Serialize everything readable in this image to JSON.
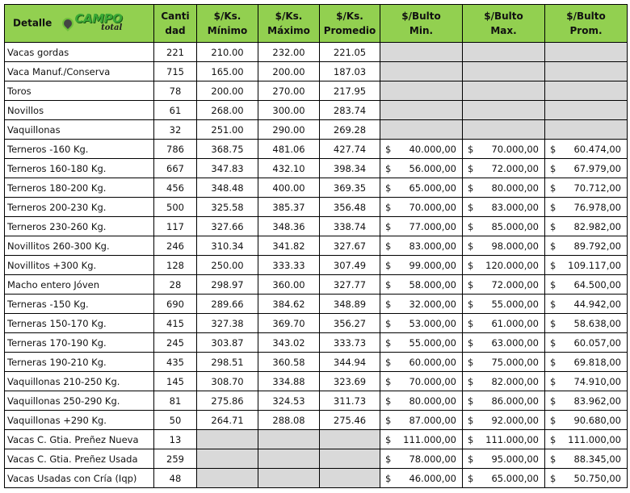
{
  "header": {
    "detalle": "Detalle",
    "logo_text": "CAMPO total",
    "cantidad": [
      "Canti",
      "dad"
    ],
    "kg_min": [
      "$/Ks.",
      "Mínimo"
    ],
    "kg_max": [
      "$/Ks.",
      "Máximo"
    ],
    "kg_prom": [
      "$/Ks.",
      "Promedio"
    ],
    "bulto_min": [
      "$/Bulto",
      "Min."
    ],
    "bulto_max": [
      "$/Bulto",
      "Max."
    ],
    "bulto_prom": [
      "$/Bulto",
      "Prom."
    ]
  },
  "currency_symbol": "$",
  "colors": {
    "header_bg": "#92d050",
    "empty_cell": "#d9d9d9"
  },
  "rows": [
    {
      "detalle": "Vacas gordas",
      "cantidad": "221",
      "kg_min": "210.00",
      "kg_max": "232.00",
      "kg_prom": "221.05",
      "bulto_min": null,
      "bulto_max": null,
      "bulto_prom": null
    },
    {
      "detalle": "Vaca Manuf./Conserva",
      "cantidad": "715",
      "kg_min": "165.00",
      "kg_max": "200.00",
      "kg_prom": "187.03",
      "bulto_min": null,
      "bulto_max": null,
      "bulto_prom": null
    },
    {
      "detalle": "Toros",
      "cantidad": "78",
      "kg_min": "200.00",
      "kg_max": "270.00",
      "kg_prom": "217.95",
      "bulto_min": null,
      "bulto_max": null,
      "bulto_prom": null
    },
    {
      "detalle": "Novillos",
      "cantidad": "61",
      "kg_min": "268.00",
      "kg_max": "300.00",
      "kg_prom": "283.74",
      "bulto_min": null,
      "bulto_max": null,
      "bulto_prom": null
    },
    {
      "detalle": "Vaquillonas",
      "cantidad": "32",
      "kg_min": "251.00",
      "kg_max": "290.00",
      "kg_prom": "269.28",
      "bulto_min": null,
      "bulto_max": null,
      "bulto_prom": null
    },
    {
      "detalle": "Terneros -160 Kg.",
      "cantidad": "786",
      "kg_min": "368.75",
      "kg_max": "481.06",
      "kg_prom": "427.74",
      "bulto_min": "40.000,00",
      "bulto_max": "70.000,00",
      "bulto_prom": "60.474,00"
    },
    {
      "detalle": "Terneros 160-180 Kg.",
      "cantidad": "667",
      "kg_min": "347.83",
      "kg_max": "432.10",
      "kg_prom": "398.34",
      "bulto_min": "56.000,00",
      "bulto_max": "72.000,00",
      "bulto_prom": "67.979,00"
    },
    {
      "detalle": "Terneros 180-200 Kg.",
      "cantidad": "456",
      "kg_min": "348.48",
      "kg_max": "400.00",
      "kg_prom": "369.35",
      "bulto_min": "65.000,00",
      "bulto_max": "80.000,00",
      "bulto_prom": "70.712,00"
    },
    {
      "detalle": "Terneros 200-230 Kg.",
      "cantidad": "500",
      "kg_min": "325.58",
      "kg_max": "385.37",
      "kg_prom": "356.48",
      "bulto_min": "70.000,00",
      "bulto_max": "83.000,00",
      "bulto_prom": "76.978,00"
    },
    {
      "detalle": "Terneros 230-260 Kg.",
      "cantidad": "117",
      "kg_min": "327.66",
      "kg_max": "348.36",
      "kg_prom": "338.74",
      "bulto_min": "77.000,00",
      "bulto_max": "85.000,00",
      "bulto_prom": "82.982,00"
    },
    {
      "detalle": "Novillitos 260-300 Kg.",
      "cantidad": "246",
      "kg_min": "310.34",
      "kg_max": "341.82",
      "kg_prom": "327.67",
      "bulto_min": "83.000,00",
      "bulto_max": "98.000,00",
      "bulto_prom": "89.792,00"
    },
    {
      "detalle": "Novillitos +300 Kg.",
      "cantidad": "128",
      "kg_min": "250.00",
      "kg_max": "333.33",
      "kg_prom": "307.49",
      "bulto_min": "99.000,00",
      "bulto_max": "120.000,00",
      "bulto_prom": "109.117,00"
    },
    {
      "detalle": "Macho entero Jóven",
      "cantidad": "28",
      "kg_min": "298.97",
      "kg_max": "360.00",
      "kg_prom": "327.77",
      "bulto_min": "58.000,00",
      "bulto_max": "72.000,00",
      "bulto_prom": "64.500,00"
    },
    {
      "detalle": "Terneras -150 Kg.",
      "cantidad": "690",
      "kg_min": "289.66",
      "kg_max": "384.62",
      "kg_prom": "348.89",
      "bulto_min": "32.000,00",
      "bulto_max": "55.000,00",
      "bulto_prom": "44.942,00"
    },
    {
      "detalle": "Terneras 150-170 Kg.",
      "cantidad": "415",
      "kg_min": "327.38",
      "kg_max": "369.70",
      "kg_prom": "356.27",
      "bulto_min": "53.000,00",
      "bulto_max": "61.000,00",
      "bulto_prom": "58.638,00"
    },
    {
      "detalle": "Terneras 170-190 Kg.",
      "cantidad": "245",
      "kg_min": "303.87",
      "kg_max": "343.02",
      "kg_prom": "333.73",
      "bulto_min": "55.000,00",
      "bulto_max": "63.000,00",
      "bulto_prom": "60.057,00"
    },
    {
      "detalle": "Terneras 190-210 Kg.",
      "cantidad": "435",
      "kg_min": "298.51",
      "kg_max": "360.58",
      "kg_prom": "344.94",
      "bulto_min": "60.000,00",
      "bulto_max": "75.000,00",
      "bulto_prom": "69.818,00"
    },
    {
      "detalle": "Vaquillonas 210-250 Kg.",
      "cantidad": "145",
      "kg_min": "308.70",
      "kg_max": "334.88",
      "kg_prom": "323.69",
      "bulto_min": "70.000,00",
      "bulto_max": "82.000,00",
      "bulto_prom": "74.910,00"
    },
    {
      "detalle": "Vaquillonas 250-290 Kg.",
      "cantidad": "81",
      "kg_min": "275.86",
      "kg_max": "324.53",
      "kg_prom": "311.73",
      "bulto_min": "80.000,00",
      "bulto_max": "86.000,00",
      "bulto_prom": "83.962,00"
    },
    {
      "detalle": "Vaquillonas +290 Kg.",
      "cantidad": "50",
      "kg_min": "264.71",
      "kg_max": "288.08",
      "kg_prom": "275.46",
      "bulto_min": "87.000,00",
      "bulto_max": "92.000,00",
      "bulto_prom": "90.680,00"
    },
    {
      "detalle": "Vacas C. Gtia. Preñez Nueva",
      "cantidad": "13",
      "kg_min": null,
      "kg_max": null,
      "kg_prom": null,
      "bulto_min": "111.000,00",
      "bulto_max": "111.000,00",
      "bulto_prom": "111.000,00"
    },
    {
      "detalle": "Vacas C. Gtia. Preñez Usada",
      "cantidad": "259",
      "kg_min": null,
      "kg_max": null,
      "kg_prom": null,
      "bulto_min": "78.000,00",
      "bulto_max": "95.000,00",
      "bulto_prom": "88.345,00"
    },
    {
      "detalle": "Vacas Usadas con Cría (Iqp)",
      "cantidad": "48",
      "kg_min": null,
      "kg_max": null,
      "kg_prom": null,
      "bulto_min": "46.000,00",
      "bulto_max": "65.000,00",
      "bulto_prom": "50.750,00"
    }
  ]
}
